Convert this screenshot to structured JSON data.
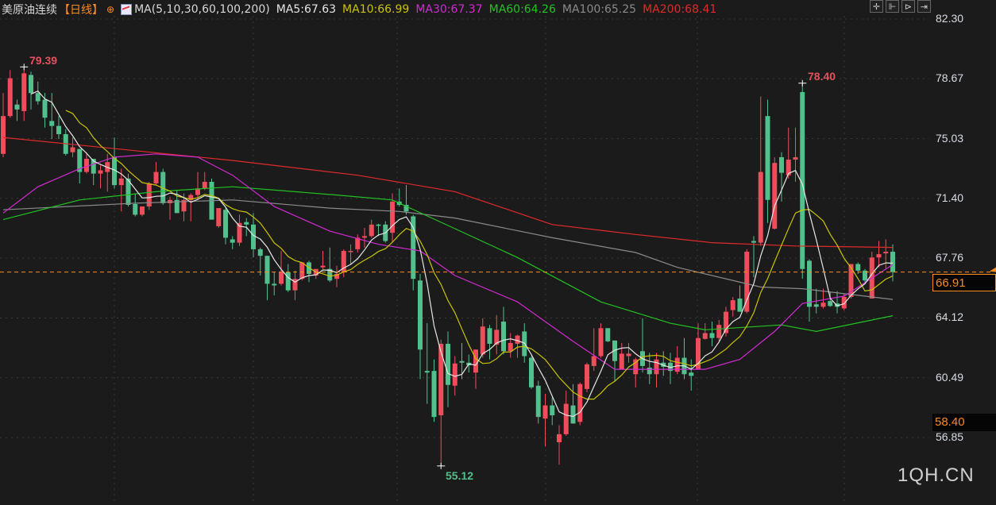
{
  "header": {
    "title": "美原油连续",
    "period": "【日线】",
    "ma_label": "MA(5,10,30,60,100,200)",
    "ma5": "MA5:67.63",
    "ma10": "MA10:66.99",
    "ma30": "MA30:67.37",
    "ma60": "MA60:64.26",
    "ma100": "MA100:65.25",
    "ma200": "MA200:68.41"
  },
  "toolbar": {
    "icons": [
      "crosshair-icon",
      "zoom-in-bars-icon",
      "zoom-out-bars-icon",
      "move-right-icon"
    ]
  },
  "watermark": "1QH.CN",
  "colors": {
    "up": "#ef4d5c",
    "down": "#52c08c",
    "ma5": "#e6e6e6",
    "ma10": "#c9c400",
    "ma30": "#d22ad2",
    "ma60": "#22c322",
    "ma100": "#8a8a8a",
    "ma200": "#e12a2a",
    "last": "#ff8a1c",
    "background": "#1b1b1b"
  },
  "chart_data": {
    "type": "candlestick",
    "ylim": [
      56.85,
      82.3
    ],
    "y_ticks": [
      "82.30",
      "78.67",
      "75.03",
      "71.40",
      "67.76",
      "64.12",
      "60.49",
      "56.85"
    ],
    "last_price": "66.91",
    "marked_level": "58.40",
    "annotations": {
      "high_left": "79.39",
      "high_right": "78.40",
      "low": "55.12"
    },
    "grid": true,
    "candles_ohlc": [
      [
        74.1,
        77.8,
        73.9,
        76.4
      ],
      [
        76.4,
        79.2,
        76.3,
        78.7
      ],
      [
        77.1,
        77.4,
        76.1,
        76.8
      ],
      [
        76.7,
        79.39,
        76.1,
        79.0
      ],
      [
        78.9,
        79.1,
        76.8,
        77.8
      ],
      [
        77.8,
        78.5,
        77.1,
        77.3
      ],
      [
        77.4,
        77.8,
        75.7,
        76.3
      ],
      [
        76.1,
        77.8,
        75.0,
        75.8
      ],
      [
        75.8,
        76.4,
        75.0,
        75.3
      ],
      [
        75.3,
        75.6,
        74.0,
        74.1
      ],
      [
        74.2,
        75.1,
        73.9,
        74.5
      ],
      [
        74.4,
        74.4,
        72.3,
        73.0
      ],
      [
        73.0,
        74.2,
        72.9,
        73.8
      ],
      [
        73.8,
        73.8,
        72.2,
        72.9
      ],
      [
        72.9,
        73.4,
        72.0,
        73.1
      ],
      [
        73.0,
        74.1,
        71.8,
        73.6
      ],
      [
        73.9,
        75.1,
        72.0,
        72.2
      ],
      [
        72.2,
        73.2,
        70.6,
        72.6
      ],
      [
        72.6,
        72.9,
        70.9,
        71.0
      ],
      [
        71.05,
        71.7,
        70.3,
        70.4
      ],
      [
        70.4,
        70.9,
        70.3,
        70.9
      ],
      [
        70.9,
        72.4,
        70.7,
        72.3
      ],
      [
        72.3,
        73.6,
        72.2,
        73.0
      ],
      [
        73.0,
        73.2,
        71.0,
        71.1
      ],
      [
        71.1,
        71.5,
        70.1,
        71.3
      ],
      [
        71.3,
        71.9,
        70.5,
        70.5
      ],
      [
        70.6,
        71.7,
        70.0,
        71.3
      ],
      [
        71.3,
        71.7,
        70.0,
        71.6
      ],
      [
        71.6,
        73.0,
        71.3,
        72.0
      ],
      [
        72.0,
        73.0,
        71.9,
        72.4
      ],
      [
        72.4,
        72.6,
        70.1,
        70.1
      ],
      [
        69.7,
        70.8,
        69.6,
        70.8
      ],
      [
        70.7,
        70.8,
        68.6,
        69.0
      ],
      [
        68.9,
        69.1,
        68.3,
        68.7
      ],
      [
        68.7,
        70.4,
        68.5,
        69.9
      ],
      [
        69.95,
        70.2,
        69.1,
        69.8
      ],
      [
        69.8,
        70.5,
        67.8,
        68.3
      ],
      [
        68.3,
        68.4,
        66.7,
        67.9
      ],
      [
        67.9,
        67.9,
        65.2,
        66.2
      ],
      [
        66.2,
        66.9,
        65.5,
        66.1
      ],
      [
        66.2,
        68.2,
        66.1,
        66.9
      ],
      [
        66.9,
        67.4,
        65.7,
        65.8
      ],
      [
        65.8,
        67.0,
        65.2,
        66.5
      ],
      [
        66.5,
        67.5,
        66.4,
        67.5
      ],
      [
        67.5,
        67.6,
        66.3,
        66.8
      ],
      [
        66.7,
        67.1,
        66.5,
        67.1
      ],
      [
        67.2,
        68.2,
        67.1,
        67.3
      ],
      [
        67.1,
        68.4,
        66.3,
        66.4
      ],
      [
        66.5,
        67.3,
        66.0,
        66.8
      ],
      [
        66.9,
        68.3,
        66.6,
        68.2
      ],
      [
        68.2,
        68.6,
        67.4,
        68.2
      ],
      [
        68.3,
        69.2,
        68.1,
        69.0
      ],
      [
        69.0,
        69.6,
        68.4,
        69.1
      ],
      [
        69.1,
        70.1,
        69.0,
        69.8
      ],
      [
        69.8,
        69.85,
        69.1,
        69.75
      ],
      [
        69.8,
        70.0,
        68.7,
        68.8
      ],
      [
        69.3,
        71.7,
        68.7,
        71.2
      ],
      [
        71.2,
        72.0,
        70.9,
        71.0
      ],
      [
        71.0,
        72.2,
        70.4,
        70.6
      ],
      [
        70.3,
        70.4,
        65.8,
        66.5
      ],
      [
        66.4,
        66.8,
        60.4,
        62.2
      ],
      [
        60.9,
        63.8,
        58.9,
        60.8
      ],
      [
        60.9,
        61.6,
        57.8,
        58.1
      ],
      [
        58.2,
        62.8,
        55.12,
        62.55
      ],
      [
        62.55,
        63.3,
        58.7,
        60.05
      ],
      [
        60.0,
        61.8,
        59.4,
        61.35
      ],
      [
        61.5,
        62.6,
        60.4,
        61.4
      ],
      [
        61.4,
        61.9,
        60.8,
        61.25
      ],
      [
        60.8,
        62.2,
        59.8,
        62.2
      ],
      [
        61.9,
        64.1,
        61.7,
        63.6
      ],
      [
        63.5,
        63.7,
        61.6,
        62.55
      ],
      [
        62.5,
        64.3,
        61.9,
        63.4
      ],
      [
        63.9,
        64.8,
        61.9,
        62.1
      ],
      [
        62.1,
        63.2,
        61.7,
        62.6
      ],
      [
        62.55,
        63.1,
        61.7,
        63.05
      ],
      [
        63.3,
        63.8,
        61.4,
        61.8
      ],
      [
        61.7,
        61.8,
        59.8,
        59.9
      ],
      [
        60.0,
        60.3,
        57.7,
        58.1
      ],
      [
        58.0,
        59.5,
        56.3,
        58.8
      ],
      [
        58.8,
        59.3,
        57.6,
        58.2
      ],
      [
        56.56,
        57.6,
        55.2,
        57.05
      ],
      [
        57.05,
        59.7,
        56.95,
        58.9
      ],
      [
        58.8,
        60.1,
        57.7,
        57.7
      ],
      [
        57.8,
        60.2,
        57.6,
        60.1
      ],
      [
        59.8,
        61.4,
        59.6,
        61.3
      ],
      [
        61.2,
        63.5,
        60.9,
        61.8
      ],
      [
        61.8,
        63.8,
        61.7,
        63.5
      ],
      [
        63.5,
        63.5,
        62.65,
        62.7
      ],
      [
        62.75,
        62.75,
        60.3,
        61.5
      ],
      [
        61.0,
        62.6,
        61.0,
        61.95
      ],
      [
        61.8,
        62.6,
        61.4,
        61.95
      ],
      [
        60.7,
        61.7,
        59.9,
        61.6
      ],
      [
        62.1,
        64.1,
        60.8,
        61.2
      ],
      [
        61.1,
        62.0,
        60.1,
        60.7
      ],
      [
        60.7,
        62.0,
        59.9,
        61.6
      ],
      [
        61.4,
        62.1,
        60.6,
        61.15
      ],
      [
        61.4,
        62.0,
        60.1,
        60.9
      ],
      [
        60.85,
        62.4,
        60.7,
        61.7
      ],
      [
        61.7,
        62.9,
        60.4,
        60.7
      ],
      [
        60.8,
        61.6,
        59.7,
        60.6
      ],
      [
        61.0,
        63.8,
        61.0,
        62.9
      ],
      [
        62.85,
        63.8,
        62.8,
        63.2
      ],
      [
        63.2,
        63.9,
        62.4,
        62.9
      ],
      [
        62.9,
        64.0,
        62.7,
        63.7
      ],
      [
        63.2,
        64.8,
        63.0,
        64.5
      ],
      [
        64.6,
        65.4,
        64.2,
        65.2
      ],
      [
        65.3,
        66.1,
        64.5,
        64.5
      ],
      [
        64.5,
        68.3,
        64.4,
        68.15
      ],
      [
        68.8,
        69.1,
        66.6,
        68.7
      ],
      [
        68.7,
        77.6,
        68.5,
        73.0
      ],
      [
        76.4,
        77.4,
        69.9,
        71.3
      ],
      [
        69.55,
        73.9,
        69.5,
        73.55
      ],
      [
        73.9,
        74.2,
        71.2,
        72.95
      ],
      [
        72.8,
        75.7,
        72.6,
        73.75
      ],
      [
        73.75,
        75.7,
        72.4,
        73.9
      ],
      [
        77.86,
        78.4,
        66.5,
        67.1
      ],
      [
        67.6,
        67.7,
        63.9,
        64.8
      ],
      [
        64.95,
        65.9,
        64.4,
        64.8
      ],
      [
        64.8,
        65.9,
        64.7,
        65.05
      ],
      [
        65.15,
        65.7,
        64.8,
        64.85
      ],
      [
        65.0,
        65.75,
        64.4,
        64.8
      ],
      [
        64.7,
        65.6,
        64.6,
        65.4
      ],
      [
        65.4,
        67.4,
        65.3,
        67.4
      ],
      [
        67.4,
        67.5,
        66.8,
        67.0
      ],
      [
        67.0,
        67.1,
        66.2,
        66.4
      ],
      [
        65.3,
        68.15,
        65.3,
        67.8
      ],
      [
        67.8,
        68.8,
        67.2,
        68.0
      ],
      [
        68.05,
        68.9,
        67.1,
        68.15
      ],
      [
        68.15,
        68.6,
        66.35,
        66.91
      ]
    ],
    "ma_series": {
      "ma30": [
        [
          1,
          70.5
        ],
        [
          6,
          72.1
        ],
        [
          12,
          73.2
        ],
        [
          17,
          73.9
        ],
        [
          23,
          74.1
        ],
        [
          29,
          73.9
        ],
        [
          34,
          72.8
        ],
        [
          40,
          70.9
        ],
        [
          48,
          69.4
        ],
        [
          55,
          68.6
        ],
        [
          61,
          68.2
        ],
        [
          66,
          66.7
        ],
        [
          75,
          65.1
        ],
        [
          83,
          62.7
        ],
        [
          89,
          61.0
        ],
        [
          102,
          61.0
        ],
        [
          107,
          61.6
        ],
        [
          112,
          63.3
        ],
        [
          116,
          65.0
        ],
        [
          122,
          65.45
        ],
        [
          129,
          67.37
        ]
      ],
      "ma60": [
        [
          1,
          70.1
        ],
        [
          12,
          71.3
        ],
        [
          23,
          71.8
        ],
        [
          34,
          72.1
        ],
        [
          49,
          71.6
        ],
        [
          57,
          71.3
        ],
        [
          66,
          69.55
        ],
        [
          75,
          67.8
        ],
        [
          87,
          65.1
        ],
        [
          97,
          63.8
        ],
        [
          102,
          63.4
        ],
        [
          113,
          63.7
        ],
        [
          118,
          63.3
        ],
        [
          129,
          64.26
        ]
      ],
      "ma100": [
        [
          1,
          70.7
        ],
        [
          20,
          71.1
        ],
        [
          34,
          71.3
        ],
        [
          48,
          70.8
        ],
        [
          58,
          70.6
        ],
        [
          66,
          70.2
        ],
        [
          80,
          69.0
        ],
        [
          92,
          68.1
        ],
        [
          98,
          67.2
        ],
        [
          110,
          66.0
        ],
        [
          116,
          65.9
        ],
        [
          129,
          65.25
        ]
      ],
      "ma200": [
        [
          1,
          75.1
        ],
        [
          34,
          73.7
        ],
        [
          52,
          72.8
        ],
        [
          66,
          71.8
        ],
        [
          80,
          69.8
        ],
        [
          92,
          69.2
        ],
        [
          103,
          68.7
        ],
        [
          115,
          68.5
        ],
        [
          129,
          68.41
        ]
      ]
    }
  }
}
